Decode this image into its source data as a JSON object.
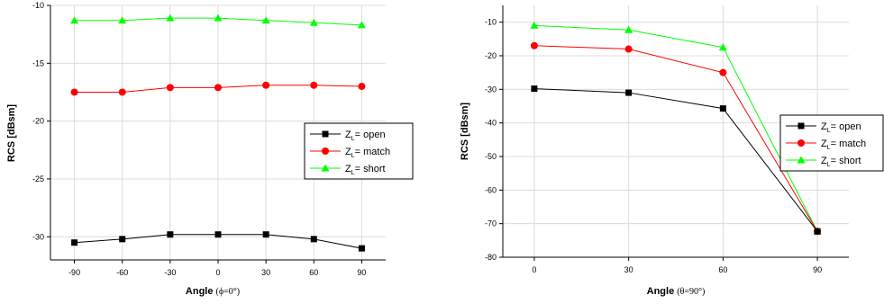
{
  "chart_data": [
    {
      "type": "line",
      "xlabel": "Angle",
      "xlabel_suffix": "(ϕ=0°)",
      "ylabel": "RCS [dBsm]",
      "x": [
        -90,
        -60,
        -30,
        0,
        30,
        60,
        90
      ],
      "xlim": [
        -105,
        105
      ],
      "ylim": [
        -32,
        -10
      ],
      "xticks": [
        -90,
        -60,
        -30,
        0,
        30,
        60,
        90
      ],
      "yticks": [
        -30,
        -25,
        -20,
        -15,
        -10
      ],
      "grid": true,
      "legend_position": "right",
      "series": [
        {
          "name": "ZL= open",
          "legend_sub": "L",
          "legend_text": "= open",
          "color": "#000000",
          "marker": "square",
          "values": [
            -30.5,
            -30.2,
            -29.8,
            -29.8,
            -29.8,
            -30.2,
            -31.0
          ]
        },
        {
          "name": "ZL= match",
          "legend_sub": "L",
          "legend_text": "= match",
          "color": "#ff0000",
          "marker": "circle",
          "values": [
            -17.5,
            -17.5,
            -17.1,
            -17.1,
            -16.9,
            -16.9,
            -17.0
          ]
        },
        {
          "name": "ZL= short",
          "legend_sub": "L",
          "legend_text": "= short",
          "color": "#00ff00",
          "marker": "triangle",
          "values": [
            -11.3,
            -11.3,
            -11.1,
            -11.1,
            -11.3,
            -11.5,
            -11.7
          ]
        }
      ]
    },
    {
      "type": "line",
      "xlabel": "Angle",
      "xlabel_suffix": "(θ=90°)",
      "ylabel": "RCS [dBsm]",
      "x": [
        0,
        30,
        60,
        90
      ],
      "xlim": [
        -10,
        100
      ],
      "ylim": [
        -80,
        -5
      ],
      "xticks": [
        0,
        30,
        60,
        90
      ],
      "yticks": [
        -80,
        -70,
        -60,
        -50,
        -40,
        -30,
        -20,
        -10
      ],
      "grid": true,
      "legend_position": "right",
      "series": [
        {
          "name": "ZL= open",
          "legend_sub": "L",
          "legend_text": "= open",
          "color": "#000000",
          "marker": "square",
          "values": [
            -29.8,
            -31.0,
            -35.7,
            -72.3
          ]
        },
        {
          "name": "ZL= match",
          "legend_sub": "L",
          "legend_text": "= match",
          "color": "#ff0000",
          "marker": "circle",
          "values": [
            -17.0,
            -18.0,
            -25.0,
            -72.3
          ]
        },
        {
          "name": "ZL= short",
          "legend_sub": "L",
          "legend_text": "= short",
          "color": "#00ff00",
          "marker": "triangle",
          "values": [
            -11.0,
            -12.3,
            -17.5,
            -72.3
          ]
        }
      ]
    }
  ]
}
